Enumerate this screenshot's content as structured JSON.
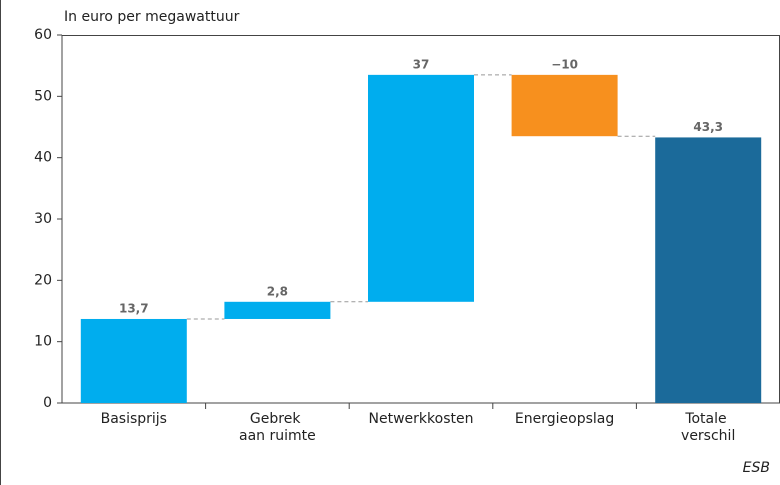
{
  "chart_data": {
    "type": "waterfall",
    "y_label": "In euro per megawattuur",
    "source": "ESB",
    "categories": [
      "Basisprijs",
      "Gebrek aan ruimte",
      "Netwerkkosten",
      "Energieopslag",
      "Totale verschil"
    ],
    "values": [
      13.7,
      2.8,
      37,
      -10,
      43.3
    ],
    "value_labels": [
      "13,7",
      "2,8",
      "37",
      "−10",
      "43,3"
    ],
    "measure": [
      "relative",
      "relative",
      "relative",
      "relative",
      "total"
    ],
    "colors": {
      "increase": "#00adee",
      "decrease": "#f7901e",
      "total": "#1b6a9a"
    },
    "ylim": [
      0,
      60
    ],
    "yticks": [
      0,
      10,
      20,
      30,
      40,
      50,
      60
    ],
    "grid": false
  }
}
